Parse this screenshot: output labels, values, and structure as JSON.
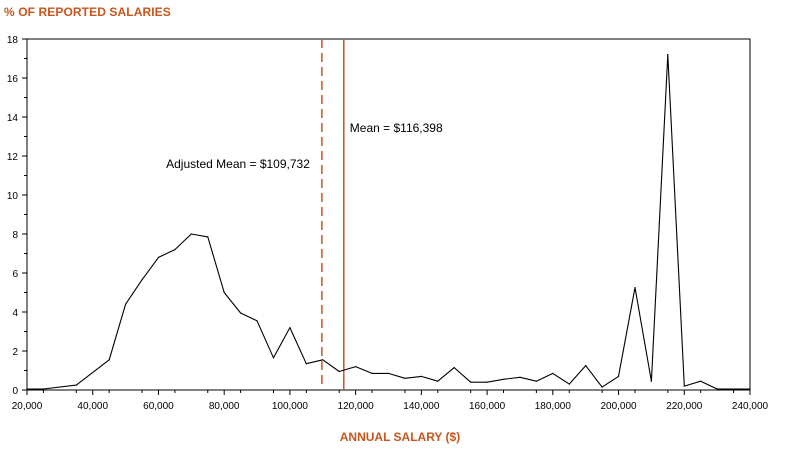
{
  "chart_data": {
    "type": "line",
    "ylabel": "% OF REPORTED SALARIES",
    "xlabel": "ANNUAL SALARY ($)",
    "xlim": [
      20000,
      240000
    ],
    "ylim": [
      0,
      18
    ],
    "x_ticks": [
      20000,
      40000,
      60000,
      80000,
      100000,
      120000,
      140000,
      160000,
      180000,
      200000,
      220000,
      240000
    ],
    "x_tick_labels": [
      "20,000",
      "40,000",
      "60,000",
      "80,000",
      "100,000",
      "120,000",
      "140,000",
      "160,000",
      "180,000",
      "200,000",
      "220,000",
      "240,000"
    ],
    "y_ticks": [
      0,
      2,
      4,
      6,
      8,
      10,
      12,
      14,
      16,
      18
    ],
    "y_tick_labels": [
      "0",
      "2",
      "4",
      "6",
      "8",
      "10",
      "12",
      "14",
      "16",
      "18"
    ],
    "grid": false,
    "colors": {
      "line": "#000000",
      "accent": "#c8561f",
      "axis": "#000000"
    },
    "series": [
      {
        "x": [
          20000,
          25000,
          35000,
          45000,
          50000,
          55000,
          60000,
          65000,
          70000,
          75000,
          80000,
          85000,
          90000,
          95000,
          100000,
          105000,
          110000,
          115000,
          120000,
          125000,
          130000,
          135000,
          140000,
          145000,
          150000,
          155000,
          160000,
          165000,
          170000,
          175000,
          180000,
          185000,
          190000,
          195000,
          200000,
          205000,
          210000,
          215000,
          220000,
          225000,
          230000,
          235000,
          240000
        ],
        "y": [
          0.05,
          0.05,
          0.25,
          1.55,
          4.4,
          5.65,
          6.8,
          7.2,
          8.0,
          7.85,
          5.0,
          3.95,
          3.55,
          1.65,
          3.2,
          1.35,
          1.55,
          0.95,
          1.2,
          0.85,
          0.85,
          0.6,
          0.7,
          0.45,
          1.15,
          0.4,
          0.4,
          0.55,
          0.65,
          0.45,
          0.85,
          0.3,
          1.25,
          0.15,
          0.7,
          5.25,
          0.45,
          17.2,
          0.2,
          0.45,
          0.05,
          0.05,
          0.05
        ]
      }
    ],
    "reference_lines": [
      {
        "label": "Adjusted Mean = $109,732",
        "x": 109732,
        "style": "dashed",
        "color": "#c8561f"
      },
      {
        "label": "Mean = $116,398",
        "x": 116398,
        "style": "solid",
        "color": "#c8561f"
      }
    ]
  }
}
